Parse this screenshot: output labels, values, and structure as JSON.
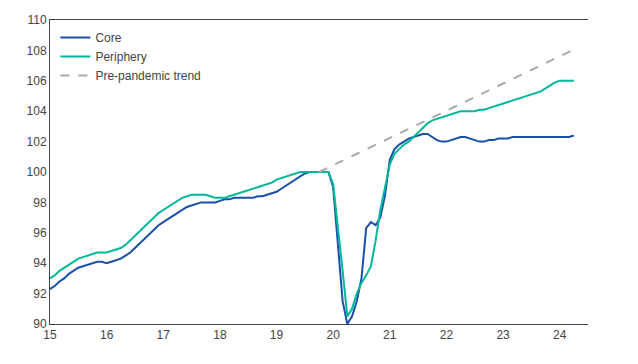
{
  "chart_data": {
    "type": "line",
    "series": [
      {
        "name": "Core",
        "color": "#1a4faa",
        "line_style": "solid",
        "x": [
          15.0,
          15.083,
          15.167,
          15.25,
          15.333,
          15.417,
          15.5,
          15.583,
          15.667,
          15.75,
          15.833,
          15.917,
          16.0,
          16.083,
          16.167,
          16.25,
          16.333,
          16.417,
          16.5,
          16.583,
          16.667,
          16.75,
          16.833,
          16.917,
          17.0,
          17.083,
          17.167,
          17.25,
          17.333,
          17.417,
          17.5,
          17.583,
          17.667,
          17.75,
          17.833,
          17.917,
          18.0,
          18.083,
          18.167,
          18.25,
          18.333,
          18.417,
          18.5,
          18.583,
          18.667,
          18.75,
          18.833,
          18.917,
          19.0,
          19.083,
          19.167,
          19.25,
          19.333,
          19.417,
          19.5,
          19.583,
          19.667,
          19.75,
          19.833,
          19.917,
          20.0,
          20.083,
          20.167,
          20.25,
          20.333,
          20.417,
          20.5,
          20.583,
          20.667,
          20.75,
          20.833,
          20.917,
          21.0,
          21.083,
          21.167,
          21.25,
          21.333,
          21.417,
          21.5,
          21.583,
          21.667,
          21.75,
          21.833,
          21.917,
          22.0,
          22.083,
          22.167,
          22.25,
          22.333,
          22.417,
          22.5,
          22.583,
          22.667,
          22.75,
          22.833,
          22.917,
          23.0,
          23.083,
          23.167,
          23.25,
          23.333,
          23.417,
          23.5,
          23.583,
          23.667,
          23.75,
          23.833,
          23.917,
          24.0,
          24.083,
          24.167,
          24.25
        ],
        "values": [
          92.3,
          92.5,
          92.8,
          93.0,
          93.3,
          93.5,
          93.7,
          93.8,
          93.9,
          94.0,
          94.1,
          94.1,
          94.0,
          94.1,
          94.2,
          94.3,
          94.5,
          94.7,
          95.0,
          95.3,
          95.6,
          95.9,
          96.2,
          96.5,
          96.7,
          96.9,
          97.1,
          97.3,
          97.5,
          97.7,
          97.8,
          97.9,
          98.0,
          98.0,
          98.0,
          98.0,
          98.1,
          98.2,
          98.2,
          98.3,
          98.3,
          98.3,
          98.3,
          98.3,
          98.4,
          98.4,
          98.5,
          98.6,
          98.7,
          98.9,
          99.1,
          99.3,
          99.5,
          99.7,
          99.9,
          100.0,
          100.0,
          100.0,
          100.0,
          100.0,
          99.0,
          95.0,
          91.5,
          90.0,
          90.5,
          91.5,
          93.0,
          96.3,
          96.7,
          96.5,
          97.0,
          98.5,
          100.8,
          101.5,
          101.8,
          102.0,
          102.2,
          102.3,
          102.4,
          102.5,
          102.5,
          102.3,
          102.1,
          102.0,
          102.0,
          102.1,
          102.2,
          102.3,
          102.3,
          102.2,
          102.1,
          102.0,
          102.0,
          102.1,
          102.1,
          102.2,
          102.2,
          102.2,
          102.3,
          102.3,
          102.3,
          102.3,
          102.3,
          102.3,
          102.3,
          102.3,
          102.3,
          102.3,
          102.3,
          102.3,
          102.3,
          102.4
        ]
      },
      {
        "name": "Periphery",
        "color": "#00b899",
        "line_style": "solid",
        "x": [
          15.0,
          15.083,
          15.167,
          15.25,
          15.333,
          15.417,
          15.5,
          15.583,
          15.667,
          15.75,
          15.833,
          15.917,
          16.0,
          16.083,
          16.167,
          16.25,
          16.333,
          16.417,
          16.5,
          16.583,
          16.667,
          16.75,
          16.833,
          16.917,
          17.0,
          17.083,
          17.167,
          17.25,
          17.333,
          17.417,
          17.5,
          17.583,
          17.667,
          17.75,
          17.833,
          17.917,
          18.0,
          18.083,
          18.167,
          18.25,
          18.333,
          18.417,
          18.5,
          18.583,
          18.667,
          18.75,
          18.833,
          18.917,
          19.0,
          19.083,
          19.167,
          19.25,
          19.333,
          19.417,
          19.5,
          19.583,
          19.667,
          19.75,
          19.833,
          19.917,
          20.0,
          20.083,
          20.167,
          20.25,
          20.333,
          20.417,
          20.5,
          20.583,
          20.667,
          20.75,
          20.833,
          20.917,
          21.0,
          21.083,
          21.167,
          21.25,
          21.333,
          21.417,
          21.5,
          21.583,
          21.667,
          21.75,
          21.833,
          21.917,
          22.0,
          22.083,
          22.167,
          22.25,
          22.333,
          22.417,
          22.5,
          22.583,
          22.667,
          22.75,
          22.833,
          22.917,
          23.0,
          23.083,
          23.167,
          23.25,
          23.333,
          23.417,
          23.5,
          23.583,
          23.667,
          23.75,
          23.833,
          23.917,
          24.0,
          24.083,
          24.167,
          24.25
        ],
        "values": [
          93.0,
          93.2,
          93.5,
          93.7,
          93.9,
          94.1,
          94.3,
          94.4,
          94.5,
          94.6,
          94.7,
          94.7,
          94.7,
          94.8,
          94.9,
          95.0,
          95.2,
          95.5,
          95.8,
          96.1,
          96.4,
          96.7,
          97.0,
          97.3,
          97.5,
          97.7,
          97.9,
          98.1,
          98.3,
          98.4,
          98.5,
          98.5,
          98.5,
          98.5,
          98.4,
          98.3,
          98.3,
          98.3,
          98.4,
          98.5,
          98.6,
          98.7,
          98.8,
          98.9,
          99.0,
          99.1,
          99.2,
          99.3,
          99.5,
          99.6,
          99.7,
          99.8,
          99.9,
          100.0,
          100.0,
          100.0,
          100.0,
          100.0,
          100.0,
          100.0,
          99.2,
          96.5,
          93.5,
          90.5,
          91.0,
          92.0,
          92.7,
          93.2,
          93.8,
          95.5,
          97.5,
          99.0,
          100.5,
          101.2,
          101.5,
          101.8,
          102.0,
          102.3,
          102.6,
          102.9,
          103.2,
          103.4,
          103.5,
          103.6,
          103.7,
          103.8,
          103.9,
          104.0,
          104.0,
          104.0,
          104.0,
          104.1,
          104.1,
          104.2,
          104.3,
          104.4,
          104.5,
          104.6,
          104.7,
          104.8,
          104.9,
          105.0,
          105.1,
          105.2,
          105.3,
          105.5,
          105.7,
          105.9,
          106.0,
          106.0,
          106.0,
          106.0
        ]
      },
      {
        "name": "Pre-pandemic trend",
        "color": "#aaaaaa",
        "line_style": "dashed",
        "x": [
          19.75,
          24.33
        ],
        "values": [
          100.0,
          108.2
        ]
      }
    ],
    "xlim": [
      15,
      24.5
    ],
    "xticks": [
      15,
      16,
      17,
      18,
      19,
      20,
      21,
      22,
      23,
      24
    ],
    "ylim": [
      90,
      110
    ],
    "yticks": [
      90,
      92,
      94,
      96,
      98,
      100,
      102,
      104,
      106,
      108,
      110
    ],
    "y2lim": [
      90,
      110
    ],
    "y2ticks": [
      90,
      92,
      94,
      96,
      98,
      100,
      102,
      104,
      106,
      108,
      110
    ],
    "grid": false,
    "legend": "upper left"
  }
}
